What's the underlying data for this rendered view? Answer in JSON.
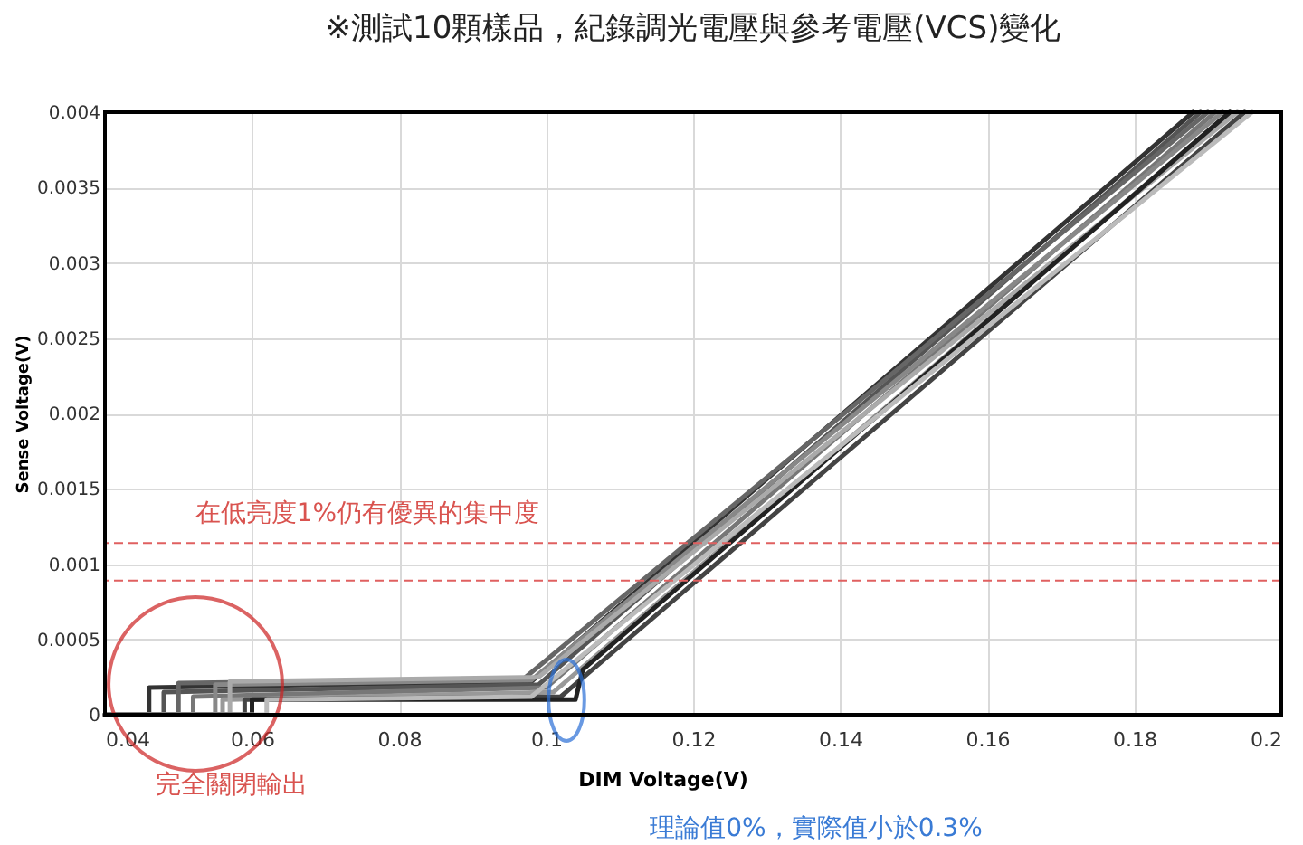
{
  "chart_data": {
    "type": "line",
    "title": "※測試10顆樣品，紀錄調光電壓與參考電壓(VCS)變化",
    "xlabel": "DIM Voltage(V)",
    "ylabel": "Sense Voltage(V)",
    "xlim": [
      0.04,
      0.2
    ],
    "xticks": [
      0.04,
      0.06,
      0.08,
      0.1,
      0.12,
      0.14,
      0.16,
      0.18,
      0.2
    ],
    "ylim": [
      0,
      0.004
    ],
    "yticks": [
      0,
      0.0005,
      0.001,
      0.0015,
      0.002,
      0.0025,
      0.003,
      0.0035,
      0.004
    ],
    "grid": true,
    "marker": "none",
    "line_style": "solid",
    "series": [
      {
        "color": "#333333",
        "x": [
          0.04,
          0.046,
          0.046,
          0.098,
          0.188
        ],
        "values": [
          0,
          0,
          0.00018,
          0.00022,
          0.004
        ]
      },
      {
        "color": "#555555",
        "x": [
          0.04,
          0.048,
          0.048,
          0.099,
          0.189
        ],
        "values": [
          0,
          0,
          0.00015,
          0.0002,
          0.004
        ]
      },
      {
        "color": "#666666",
        "x": [
          0.04,
          0.05,
          0.05,
          0.097,
          0.19
        ],
        "values": [
          0,
          0,
          0.00021,
          0.00024,
          0.004
        ]
      },
      {
        "color": "#777777",
        "x": [
          0.04,
          0.052,
          0.052,
          0.1,
          0.191
        ],
        "values": [
          0,
          0,
          0.00012,
          0.00018,
          0.004
        ]
      },
      {
        "color": "#888888",
        "x": [
          0.04,
          0.055,
          0.055,
          0.098,
          0.192
        ],
        "values": [
          0,
          0,
          0.0002,
          0.00023,
          0.004
        ]
      },
      {
        "color": "#999999",
        "x": [
          0.04,
          0.056,
          0.056,
          0.101,
          0.193
        ],
        "values": [
          0,
          0,
          0.0001,
          0.00015,
          0.004
        ]
      },
      {
        "color": "#aaaaaa",
        "x": [
          0.04,
          0.057,
          0.057,
          0.099,
          0.194
        ],
        "values": [
          0,
          0,
          0.00022,
          0.00025,
          0.004
        ]
      },
      {
        "color": "#444444",
        "x": [
          0.04,
          0.059,
          0.059,
          0.102,
          0.195
        ],
        "values": [
          0,
          0,
          0.0001,
          0.00012,
          0.004
        ]
      },
      {
        "color": "#222222",
        "x": [
          0.04,
          0.06,
          0.06,
          0.104,
          0.105,
          0.193
        ],
        "values": [
          0,
          0,
          0.0001,
          0.0001,
          0.0003,
          0.004
        ]
      },
      {
        "color": "#bbbbbb",
        "x": [
          0.04,
          0.062,
          0.062,
          0.098,
          0.196
        ],
        "values": [
          0,
          0,
          0.0001,
          0.00012,
          0.004
        ]
      }
    ],
    "ref_lines": [
      {
        "axis": "y",
        "value": 0.00114,
        "color": "#e06060",
        "line_style": "dashed"
      },
      {
        "axis": "y",
        "value": 0.00089,
        "color": "#e06060",
        "line_style": "dashed"
      }
    ],
    "annotations": [
      "在低亮度1%仍有優異的集中度",
      "完全關閉輸出",
      "理論值0%，實際值小於0.3%"
    ]
  }
}
